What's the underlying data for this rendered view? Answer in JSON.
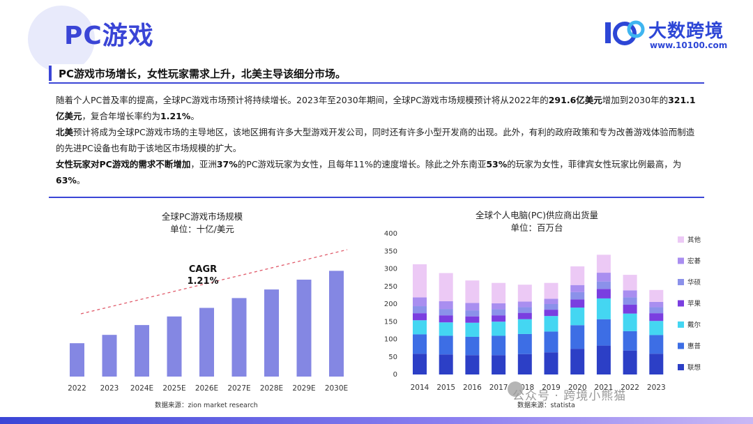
{
  "header": {
    "title": "PC游戏",
    "logo_name": "大数跨境",
    "logo_url": "www.10100.com"
  },
  "headline": "PC游戏市场增长，女性玩家需求上升，北美主导该细分市场。",
  "paragraphs": {
    "p1_a": "随着个人PC普及率的提高，全球PC游戏市场预计将持续增长。2023年至2030年期间，全球PC游戏市场规模预计将从2022年的",
    "p1_b": "291.6亿美元",
    "p1_c": "增加到2030年的",
    "p1_d": "321.1亿美元",
    "p1_e": "，复合年增长率约为",
    "p1_f": "1.21%",
    "p1_g": "。",
    "p2_a": "北美",
    "p2_b": "预计将成为全球PC游戏市场的主导地区，该地区拥有许多大型游戏开发公司，同时还有许多小型开发商的出现。此外，有利的政府政策和专为改善游戏体验而制造的先进PC设备也有助于该地区市场规模的扩大。",
    "p3_a": "女性玩家对PC游戏的需求不断增加",
    "p3_b": "，亚洲",
    "p3_c": "37%",
    "p3_d": "的PC游戏玩家为女性，且每年11%的速度增长。除此之外东南亚",
    "p3_e": "53%",
    "p3_f": "的玩家为女性，菲律宾女性玩家比例最高，为",
    "p3_g": "63%",
    "p3_h": "。"
  },
  "left_chart_text": {
    "title": "全球PC游戏市场规模",
    "unit": "单位：十亿/美元",
    "cagr_label": "CAGR",
    "cagr_value": "1.21%",
    "source": "数据来源：zion market research"
  },
  "right_chart_text": {
    "title": "全球个人电脑(PC)供应商出货量",
    "unit": "单位：百万台",
    "source": "数据来源：statista"
  },
  "watermark": "公众号 · 跨境小熊猫",
  "chart_data": [
    {
      "type": "bar",
      "title": "全球PC游戏市场规模",
      "ylabel": "单位：十亿/美元",
      "categories": [
        "2022",
        "2023",
        "2024E",
        "2025E",
        "2026E",
        "2027E",
        "2028E",
        "2029E",
        "2030E"
      ],
      "values": [
        29.16,
        29.5,
        29.9,
        30.25,
        30.6,
        31.0,
        31.35,
        31.75,
        32.11
      ],
      "annotation": "CAGR 1.21%",
      "color": "#8487e3"
    },
    {
      "type": "bar",
      "stacked": true,
      "title": "全球个人电脑(PC)供应商出货量",
      "ylabel": "单位：百万台",
      "ylim": [
        0,
        400
      ],
      "yticks": [
        0,
        50,
        100,
        150,
        200,
        250,
        300,
        350,
        400
      ],
      "categories": [
        "2014",
        "2015",
        "2016",
        "2017",
        "2018",
        "2019",
        "2020",
        "2021",
        "2022",
        "2023"
      ],
      "series": [
        {
          "name": "联想",
          "color": "#2c3fc6",
          "values": [
            59,
            57,
            55,
            55,
            58,
            63,
            73,
            82,
            68,
            59
          ]
        },
        {
          "name": "惠普",
          "color": "#3d6ee5",
          "values": [
            55,
            53,
            52,
            55,
            57,
            59,
            67,
            75,
            55,
            53
          ]
        },
        {
          "name": "戴尔",
          "color": "#44d6f2",
          "values": [
            40,
            38,
            40,
            40,
            42,
            44,
            50,
            59,
            50,
            40
          ]
        },
        {
          "name": "苹果",
          "color": "#7a3ee0",
          "values": [
            20,
            20,
            18,
            18,
            18,
            18,
            23,
            27,
            25,
            22
          ]
        },
        {
          "name": "华硕",
          "color": "#8b91ea",
          "values": [
            20,
            18,
            17,
            17,
            16,
            16,
            21,
            21,
            21,
            17
          ]
        },
        {
          "name": "宏碁",
          "color": "#a98ef0",
          "values": [
            25,
            22,
            21,
            17,
            16,
            15,
            20,
            25,
            20,
            15
          ]
        },
        {
          "name": "其他",
          "color": "#ecc9f5",
          "values": [
            94,
            80,
            64,
            58,
            48,
            45,
            53,
            51,
            44,
            34
          ]
        }
      ]
    }
  ]
}
